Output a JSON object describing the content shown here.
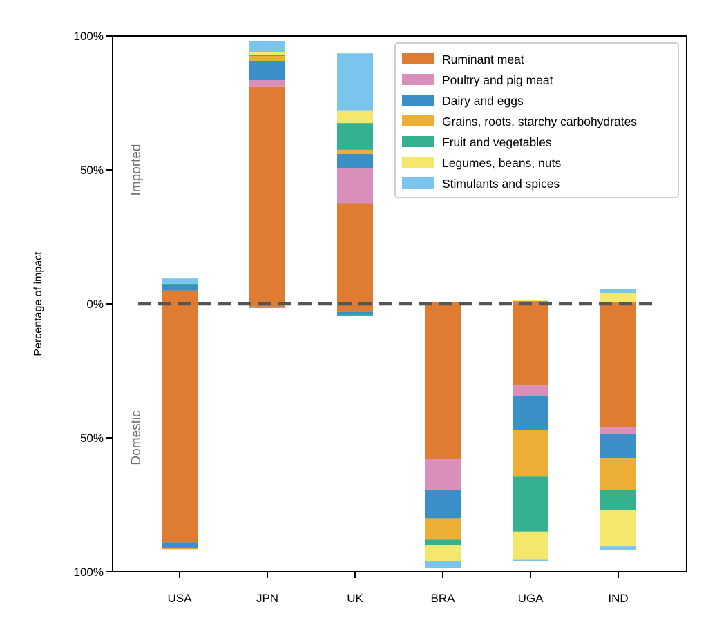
{
  "chart_data": {
    "type": "bar",
    "stacked": true,
    "ylabel": "Percentage of impact",
    "region_labels": {
      "upper": "Imported",
      "lower": "Domestic"
    },
    "categories": [
      "USA",
      "JPN",
      "UK",
      "BRA",
      "UGA",
      "IND"
    ],
    "y_ticks": [
      {
        "value": 100,
        "label": "100%"
      },
      {
        "value": 50,
        "label": "50%"
      },
      {
        "value": 0,
        "label": "0%"
      },
      {
        "value": -50,
        "label": "50%"
      },
      {
        "value": -100,
        "label": "100%"
      }
    ],
    "ylim": [
      -100,
      100
    ],
    "zero_line": {
      "style": "dashed",
      "color": "#555555"
    },
    "legend_position": "top-right",
    "series": [
      {
        "name": "Ruminant meat",
        "color": "#E07B32",
        "imported": [
          5.0,
          81.0,
          37.5,
          0.5,
          0.5,
          0.5
        ],
        "domestic": [
          89.0,
          1.0,
          3.0,
          58.0,
          30.5,
          46.0
        ]
      },
      {
        "name": "Poultry and pig meat",
        "color": "#D98FBA",
        "imported": [
          0.0,
          2.5,
          13.0,
          0.0,
          0.0,
          0.0
        ],
        "domestic": [
          0.0,
          0.0,
          0.0,
          11.5,
          4.0,
          2.5
        ]
      },
      {
        "name": "Dairy and eggs",
        "color": "#3A8FC7",
        "imported": [
          2.0,
          7.0,
          5.5,
          0.0,
          0.0,
          0.0
        ],
        "domestic": [
          2.0,
          0.0,
          1.0,
          10.5,
          12.5,
          9.0
        ]
      },
      {
        "name": "Grains, roots, starchy carbohydrates",
        "color": "#ECAE34",
        "imported": [
          0.0,
          2.0,
          1.5,
          0.0,
          0.0,
          0.0
        ],
        "domestic": [
          0.5,
          0.0,
          0.0,
          8.0,
          17.5,
          12.0
        ]
      },
      {
        "name": "Fruit and vegetables",
        "color": "#34B28F",
        "imported": [
          0.5,
          0.5,
          10.0,
          0.0,
          0.5,
          0.0
        ],
        "domestic": [
          0.0,
          0.5,
          0.5,
          2.0,
          20.5,
          7.5
        ]
      },
      {
        "name": "Legumes, beans, nuts",
        "color": "#F3E76C",
        "imported": [
          0.0,
          1.0,
          4.5,
          0.0,
          0.5,
          3.5
        ],
        "domestic": [
          0.5,
          0.0,
          0.0,
          6.0,
          10.5,
          13.5
        ]
      },
      {
        "name": "Stimulants and spices",
        "color": "#7AC5EE",
        "imported": [
          2.0,
          4.0,
          21.5,
          0.0,
          0.0,
          1.5
        ],
        "domestic": [
          0.0,
          0.0,
          0.0,
          2.5,
          0.5,
          1.5
        ]
      }
    ]
  }
}
